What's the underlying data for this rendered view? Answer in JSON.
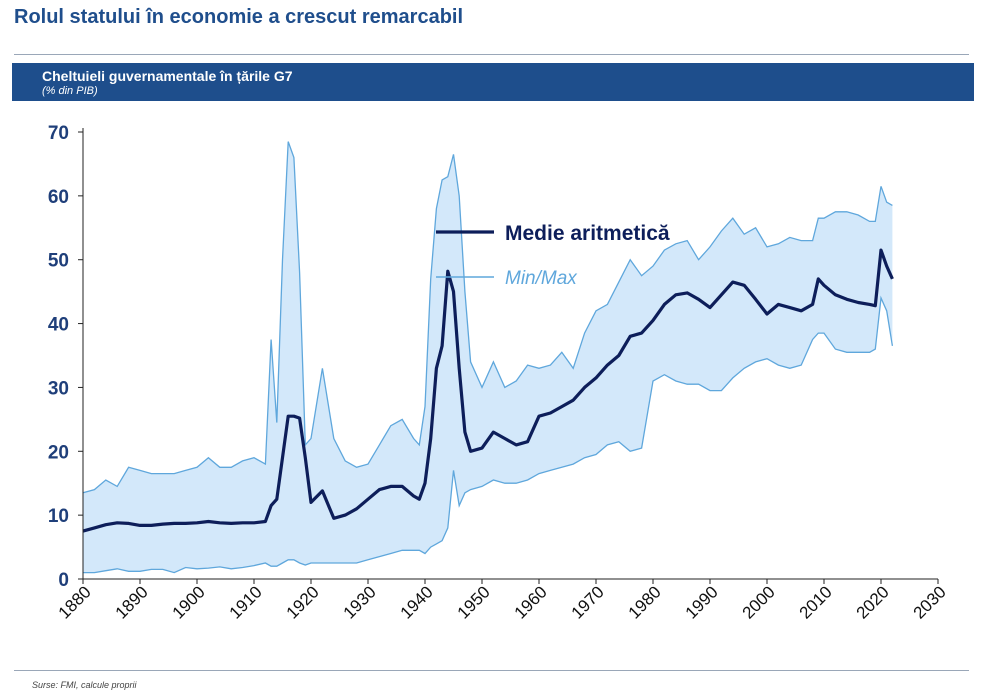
{
  "page": {
    "title": "Rolul statului în economie a crescut remarcabil",
    "source": "Surse: FMI, calcule proprii"
  },
  "chart_data": {
    "type": "line",
    "title": "Cheltuieli guvernamentale în țările G7",
    "subtitle": "(% din PIB)",
    "xlabel": "",
    "ylabel": "",
    "xlim": [
      1880,
      2030
    ],
    "ylim": [
      0,
      70
    ],
    "xticks": [
      "1880",
      "1890",
      "1900",
      "1910",
      "1920",
      "1930",
      "1940",
      "1950",
      "1960",
      "1970",
      "1980",
      "1990",
      "2000",
      "2010",
      "2020",
      "2030"
    ],
    "yticks": [
      "0",
      "10",
      "20",
      "30",
      "40",
      "50",
      "60",
      "70"
    ],
    "grid": false,
    "legend_position": "top-center",
    "colors": {
      "mean": "#0d1e5a",
      "band_fill": "#d3e8fa",
      "band_line": "#5fa7dc",
      "axis": "#222222"
    },
    "series": [
      {
        "name": "Medie aritmetică",
        "kind": "line",
        "x": [
          1880,
          1882,
          1884,
          1886,
          1888,
          1890,
          1892,
          1894,
          1896,
          1898,
          1900,
          1902,
          1904,
          1906,
          1908,
          1910,
          1912,
          1913,
          1914,
          1915,
          1916,
          1917,
          1918,
          1919,
          1920,
          1922,
          1924,
          1926,
          1928,
          1930,
          1932,
          1934,
          1936,
          1938,
          1939,
          1940,
          1941,
          1942,
          1943,
          1944,
          1945,
          1946,
          1947,
          1948,
          1950,
          1952,
          1954,
          1956,
          1958,
          1960,
          1962,
          1964,
          1966,
          1968,
          1970,
          1972,
          1974,
          1976,
          1978,
          1980,
          1982,
          1984,
          1986,
          1988,
          1990,
          1992,
          1994,
          1996,
          1998,
          2000,
          2002,
          2004,
          2006,
          2008,
          2009,
          2010,
          2012,
          2014,
          2016,
          2018,
          2019,
          2020,
          2021,
          2022
        ],
        "y": [
          7.5,
          8,
          8.5,
          8.8,
          8.7,
          8.4,
          8.4,
          8.6,
          8.7,
          8.7,
          8.8,
          9,
          8.8,
          8.7,
          8.8,
          8.8,
          9,
          11.5,
          12.5,
          19,
          25.5,
          25.5,
          25.2,
          19,
          12,
          13.8,
          9.5,
          10,
          11,
          12.5,
          14,
          14.5,
          14.5,
          13,
          12.5,
          15,
          22,
          33,
          36.5,
          48.2,
          45,
          33,
          23,
          20,
          20.5,
          23,
          22,
          21,
          21.5,
          25.5,
          26,
          27,
          28,
          30,
          31.5,
          33.5,
          35,
          38,
          38.5,
          40.5,
          43,
          44.5,
          44.8,
          43.8,
          42.5,
          44.5,
          46.5,
          46,
          43.8,
          41.5,
          43,
          42.5,
          42,
          43,
          47,
          46,
          44.5,
          43.8,
          43.3,
          43,
          42.8,
          51.5,
          49,
          47
        ]
      },
      {
        "name": "Min/Max",
        "kind": "band",
        "x": [
          1880,
          1882,
          1884,
          1886,
          1888,
          1890,
          1892,
          1894,
          1896,
          1898,
          1900,
          1902,
          1904,
          1906,
          1908,
          1910,
          1912,
          1913,
          1914,
          1915,
          1916,
          1917,
          1918,
          1919,
          1920,
          1922,
          1924,
          1926,
          1928,
          1930,
          1932,
          1934,
          1936,
          1938,
          1939,
          1940,
          1941,
          1942,
          1943,
          1944,
          1945,
          1946,
          1947,
          1948,
          1950,
          1952,
          1954,
          1956,
          1958,
          1960,
          1962,
          1964,
          1966,
          1968,
          1970,
          1972,
          1974,
          1976,
          1978,
          1980,
          1982,
          1984,
          1986,
          1988,
          1990,
          1992,
          1994,
          1996,
          1998,
          2000,
          2002,
          2004,
          2006,
          2008,
          2009,
          2010,
          2012,
          2014,
          2016,
          2018,
          2019,
          2020,
          2021,
          2022
        ],
        "max": [
          13.5,
          14,
          15.5,
          14.5,
          17.5,
          17,
          16.5,
          16.5,
          16.5,
          17,
          17.5,
          19,
          17.5,
          17.5,
          18.5,
          19,
          18,
          37.5,
          24.5,
          50,
          68.5,
          66,
          48,
          21,
          22,
          33,
          22,
          18.5,
          17.5,
          18,
          21,
          24,
          25,
          22,
          21,
          27,
          47,
          58,
          62.5,
          63,
          66.5,
          60,
          45,
          34,
          30,
          34,
          30,
          31,
          33.5,
          33,
          33.5,
          35.5,
          33,
          38.5,
          42,
          43,
          46.5,
          50,
          47.5,
          49,
          51.5,
          52.5,
          53,
          50,
          52,
          54.5,
          56.5,
          54,
          55,
          52,
          52.5,
          53.5,
          53,
          53,
          56.5,
          56.5,
          57.5,
          57.5,
          57,
          56,
          56,
          61.5,
          59,
          58.5
        ],
        "min": [
          1,
          1,
          1.3,
          1.6,
          1.2,
          1.2,
          1.5,
          1.5,
          1,
          1.8,
          1.6,
          1.7,
          1.9,
          1.6,
          1.8,
          2.1,
          2.5,
          2,
          2,
          2.5,
          3,
          3,
          2.5,
          2.2,
          2.5,
          2.5,
          2.5,
          2.5,
          2.5,
          3,
          3.5,
          4,
          4.5,
          4.5,
          4.5,
          4,
          5,
          5.5,
          6,
          8,
          17,
          11.5,
          13.5,
          14,
          14.5,
          15.5,
          15,
          15,
          15.5,
          16.5,
          17,
          17.5,
          18,
          19,
          19.5,
          21,
          21.5,
          20,
          20.5,
          31,
          32,
          31,
          30.5,
          30.5,
          29.5,
          29.5,
          31.5,
          33,
          34,
          34.5,
          33.5,
          33,
          33.5,
          37.5,
          38.5,
          38.5,
          36,
          35.5,
          35.5,
          35.5,
          36,
          44,
          42,
          36.5
        ]
      }
    ]
  }
}
